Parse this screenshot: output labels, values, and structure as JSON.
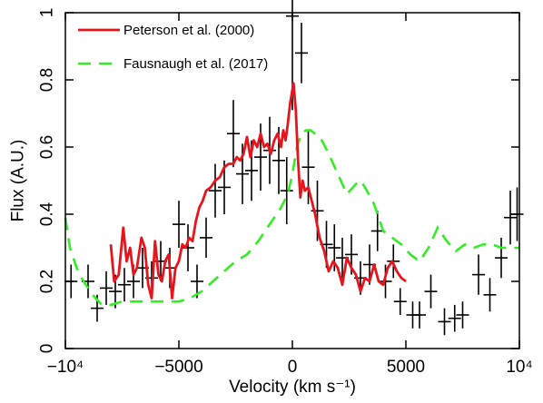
{
  "chart_data": {
    "type": "line",
    "title": "",
    "xlabel": "Velocity (km s⁻¹)",
    "ylabel": "Flux (A.U.)",
    "xlim": [
      -10000,
      10000
    ],
    "ylim": [
      0,
      1
    ],
    "x_ticks": [
      {
        "value": -10000,
        "label": "−10⁴"
      },
      {
        "value": -5000,
        "label": "−5000"
      },
      {
        "value": 0,
        "label": "0"
      },
      {
        "value": 5000,
        "label": "5000"
      },
      {
        "value": 10000,
        "label": "10⁴"
      }
    ],
    "y_ticks": [
      {
        "value": 0,
        "label": "0"
      },
      {
        "value": 0.2,
        "label": "0.2"
      },
      {
        "value": 0.4,
        "label": "0.4"
      },
      {
        "value": 0.6,
        "label": "0.6"
      },
      {
        "value": 0.8,
        "label": "0.8"
      },
      {
        "value": 1,
        "label": "1"
      }
    ],
    "grid": false,
    "legend_position": "top-left",
    "series": [
      {
        "name": "Peterson et al. (2000)",
        "style": "solid",
        "color": "#e8141c",
        "x": [
          -8000,
          -7850,
          -7650,
          -7450,
          -7300,
          -7150,
          -7000,
          -6850,
          -6650,
          -6500,
          -6350,
          -6200,
          -6050,
          -5900,
          -5750,
          -5600,
          -5450,
          -5300,
          -5150,
          -5000,
          -4850,
          -4700,
          -4550,
          -4400,
          -4250,
          -4100,
          -3950,
          -3800,
          -3600,
          -3400,
          -3200,
          -3000,
          -2800,
          -2600,
          -2450,
          -2300,
          -2150,
          -2000,
          -1850,
          -1700,
          -1550,
          -1400,
          -1250,
          -1100,
          -950,
          -800,
          -650,
          -500,
          -400,
          -300,
          -200,
          -100,
          0,
          50,
          150,
          250,
          350,
          450,
          550,
          700,
          850,
          1000,
          1200,
          1400,
          1600,
          1800,
          2000,
          2200,
          2400,
          2600,
          2800,
          3000,
          3200,
          3400,
          3600,
          3800,
          4000,
          4200,
          4400,
          4600,
          4800,
          5000
        ],
        "y": [
          0.31,
          0.2,
          0.22,
          0.36,
          0.26,
          0.3,
          0.22,
          0.24,
          0.33,
          0.3,
          0.19,
          0.15,
          0.32,
          0.22,
          0.2,
          0.26,
          0.28,
          0.15,
          0.24,
          0.26,
          0.31,
          0.3,
          0.33,
          0.32,
          0.38,
          0.42,
          0.44,
          0.47,
          0.48,
          0.5,
          0.51,
          0.54,
          0.55,
          0.55,
          0.57,
          0.56,
          0.58,
          0.63,
          0.57,
          0.62,
          0.6,
          0.64,
          0.6,
          0.61,
          0.58,
          0.62,
          0.64,
          0.6,
          0.65,
          0.62,
          0.67,
          0.73,
          0.77,
          0.79,
          0.71,
          0.56,
          0.45,
          0.5,
          0.47,
          0.48,
          0.44,
          0.4,
          0.33,
          0.29,
          0.23,
          0.26,
          0.24,
          0.19,
          0.27,
          0.24,
          0.22,
          0.17,
          0.21,
          0.2,
          0.25,
          0.2,
          0.19,
          0.24,
          0.26,
          0.23,
          0.21,
          0.2
        ]
      },
      {
        "name": "Fausnaugh et al. (2017)",
        "style": "dashed",
        "color": "#33ee22",
        "x": [
          -10000,
          -9800,
          -9500,
          -9200,
          -8800,
          -8400,
          -8000,
          -7500,
          -7000,
          -6500,
          -6000,
          -5500,
          -5000,
          -4500,
          -4000,
          -3500,
          -3000,
          -2500,
          -2000,
          -1500,
          -1000,
          -500,
          -200,
          0,
          200,
          400,
          600,
          800,
          1000,
          1300,
          1600,
          2000,
          2400,
          2800,
          3000,
          3200,
          3600,
          4000,
          4400,
          4800,
          5200,
          5600,
          6000,
          6400,
          6800,
          7200,
          7600,
          8000,
          8400,
          8800,
          9200,
          9600,
          10000
        ],
        "y": [
          0.39,
          0.3,
          0.24,
          0.2,
          0.16,
          0.13,
          0.13,
          0.14,
          0.14,
          0.14,
          0.14,
          0.14,
          0.14,
          0.15,
          0.17,
          0.2,
          0.23,
          0.26,
          0.28,
          0.32,
          0.37,
          0.42,
          0.46,
          0.52,
          0.6,
          0.64,
          0.65,
          0.65,
          0.64,
          0.62,
          0.58,
          0.52,
          0.46,
          0.49,
          0.5,
          0.48,
          0.43,
          0.35,
          0.33,
          0.31,
          0.28,
          0.26,
          0.3,
          0.36,
          0.32,
          0.29,
          0.31,
          0.3,
          0.31,
          0.31,
          0.3,
          0.3,
          0.3
        ]
      },
      {
        "name": "",
        "style": "errorbars",
        "color": "#000000",
        "points": [
          {
            "x": -9750,
            "y": 0.2,
            "yerr": 0.05
          },
          {
            "x": -9000,
            "y": 0.2,
            "yerr": 0.05
          },
          {
            "x": -8600,
            "y": 0.12,
            "yerr": 0.04
          },
          {
            "x": -8200,
            "y": 0.18,
            "yerr": 0.05
          },
          {
            "x": -7800,
            "y": 0.17,
            "yerr": 0.05
          },
          {
            "x": -7400,
            "y": 0.19,
            "yerr": 0.05
          },
          {
            "x": -7000,
            "y": 0.2,
            "yerr": 0.05
          },
          {
            "x": -6600,
            "y": 0.24,
            "yerr": 0.06
          },
          {
            "x": -6200,
            "y": 0.21,
            "yerr": 0.05
          },
          {
            "x": -5800,
            "y": 0.26,
            "yerr": 0.06
          },
          {
            "x": -5400,
            "y": 0.24,
            "yerr": 0.06
          },
          {
            "x": -5000,
            "y": 0.37,
            "yerr": 0.07
          },
          {
            "x": -4600,
            "y": 0.3,
            "yerr": 0.07
          },
          {
            "x": -4200,
            "y": 0.2,
            "yerr": 0.05
          },
          {
            "x": -3800,
            "y": 0.33,
            "yerr": 0.06
          },
          {
            "x": -3400,
            "y": 0.47,
            "yerr": 0.08
          },
          {
            "x": -3000,
            "y": 0.48,
            "yerr": 0.08
          },
          {
            "x": -2600,
            "y": 0.64,
            "yerr": 0.1
          },
          {
            "x": -2200,
            "y": 0.52,
            "yerr": 0.09
          },
          {
            "x": -1800,
            "y": 0.53,
            "yerr": 0.09
          },
          {
            "x": -1400,
            "y": 0.57,
            "yerr": 0.1
          },
          {
            "x": -1000,
            "y": 0.59,
            "yerr": 0.1
          },
          {
            "x": -600,
            "y": 0.56,
            "yerr": 0.1
          },
          {
            "x": -250,
            "y": 0.47,
            "yerr": 0.1
          },
          {
            "x": 0,
            "y": 0.99,
            "yerr": 0.28
          },
          {
            "x": 400,
            "y": 0.88,
            "yerr": 0.09
          },
          {
            "x": 700,
            "y": 0.54,
            "yerr": 0.11
          },
          {
            "x": 1100,
            "y": 0.41,
            "yerr": 0.09
          },
          {
            "x": 1500,
            "y": 0.31,
            "yerr": 0.07
          },
          {
            "x": 1850,
            "y": 0.3,
            "yerr": 0.07
          },
          {
            "x": 2200,
            "y": 0.27,
            "yerr": 0.06
          },
          {
            "x": 2600,
            "y": 0.28,
            "yerr": 0.06
          },
          {
            "x": 3000,
            "y": 0.21,
            "yerr": 0.05
          },
          {
            "x": 3400,
            "y": 0.25,
            "yerr": 0.06
          },
          {
            "x": 3750,
            "y": 0.35,
            "yerr": 0.06
          },
          {
            "x": 4100,
            "y": 0.2,
            "yerr": 0.05
          },
          {
            "x": 4450,
            "y": 0.26,
            "yerr": 0.05
          },
          {
            "x": 4750,
            "y": 0.14,
            "yerr": 0.04
          },
          {
            "x": 5300,
            "y": 0.1,
            "yerr": 0.04
          },
          {
            "x": 5600,
            "y": 0.1,
            "yerr": 0.04
          },
          {
            "x": 6100,
            "y": 0.17,
            "yerr": 0.05
          },
          {
            "x": 6700,
            "y": 0.08,
            "yerr": 0.04
          },
          {
            "x": 7150,
            "y": 0.09,
            "yerr": 0.04
          },
          {
            "x": 7500,
            "y": 0.1,
            "yerr": 0.04
          },
          {
            "x": 8200,
            "y": 0.22,
            "yerr": 0.06
          },
          {
            "x": 8700,
            "y": 0.16,
            "yerr": 0.05
          },
          {
            "x": 9200,
            "y": 0.27,
            "yerr": 0.06
          },
          {
            "x": 9600,
            "y": 0.39,
            "yerr": 0.08
          },
          {
            "x": 9900,
            "y": 0.4,
            "yerr": 0.08
          }
        ]
      }
    ]
  }
}
